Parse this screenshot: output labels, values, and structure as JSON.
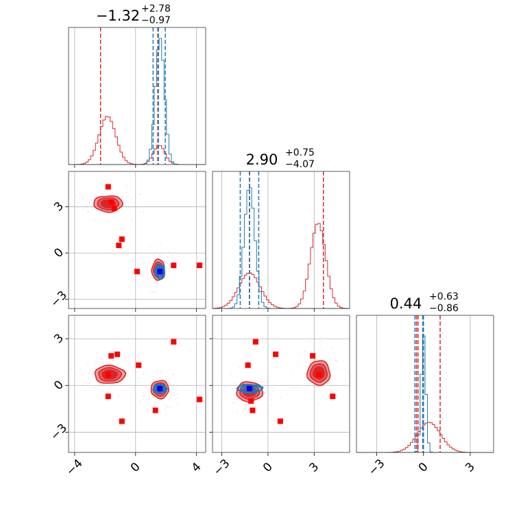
{
  "chart_data": {
    "type": "corner",
    "grid": true,
    "colors": {
      "red": "#d62728",
      "blue": "#1f77b4",
      "marker_red": "#ff0000",
      "marker_blue": "#0000ff",
      "fill_light": "#f29b9c",
      "fill_mid": "#e5585a"
    },
    "parameters": [
      {
        "title": {
          "value": "−1.32",
          "plus": "+2.78",
          "minus": "−0.97"
        },
        "range": [
          -4.4,
          4.6
        ],
        "ticks": [
          -4,
          0,
          4
        ],
        "tick_labels": [
          "−4",
          "0",
          "4"
        ],
        "quantiles_red": [
          -2.3,
          1.46,
          1.46
        ],
        "quantiles_blue": [
          1.15,
          1.5,
          1.95
        ]
      },
      {
        "title": {
          "value": "2.90",
          "plus": "+0.75",
          "minus": "−4.07"
        },
        "range": [
          -3.6,
          5.3
        ],
        "ticks": [
          -3,
          0,
          3
        ],
        "tick_labels": [
          "−3",
          "0",
          "3"
        ],
        "quantiles_red": [
          -1.2,
          -1.2,
          3.6
        ],
        "quantiles_blue": [
          -1.8,
          -1.2,
          -0.6
        ]
      },
      {
        "title": {
          "value": "0.44",
          "plus": "+0.63",
          "minus": "−0.86"
        },
        "range": [
          -4.3,
          4.5
        ],
        "ticks": [
          -3,
          0,
          3
        ],
        "tick_labels": [
          "−3",
          "0",
          "3"
        ],
        "quantiles_red": [
          -0.45,
          -0.35,
          1.07
        ],
        "quantiles_blue": [
          -0.55,
          -0.05,
          0.0
        ]
      }
    ],
    "histograms": [
      {
        "param": 0,
        "red": [
          {
            "mu": -1.85,
            "sigma": 0.55,
            "weight": 0.35
          },
          {
            "mu": 1.55,
            "sigma": 0.38,
            "weight": 0.14
          }
        ],
        "blue": [
          {
            "mu": 1.6,
            "sigma": 0.3,
            "weight": 1.0
          }
        ],
        "red_peak": 0.35,
        "blue_peak": 0.92
      },
      {
        "param": 1,
        "red": [
          {
            "mu": -1.2,
            "sigma": 0.7,
            "weight": 0.3
          },
          {
            "mu": 3.25,
            "sigma": 0.5,
            "weight": 0.72
          }
        ],
        "blue": [
          {
            "mu": -1.2,
            "sigma": 0.35,
            "weight": 1.0
          }
        ],
        "red_peak": 0.62,
        "blue_peak": 0.88
      },
      {
        "param": 2,
        "red": [
          {
            "mu": 0.35,
            "sigma": 0.75,
            "weight": 0.25
          }
        ],
        "blue": [
          {
            "mu": 0.0,
            "sigma": 0.15,
            "weight": 1.0
          }
        ],
        "red_peak": 0.22,
        "blue_peak": 0.85
      }
    ],
    "scatter_panels": [
      {
        "x_param": 0,
        "y_param": 1,
        "red_clusters": [
          {
            "cx": -1.8,
            "cy": 3.2,
            "rx": 1.8,
            "ry": 1.0
          },
          {
            "cx": 1.5,
            "cy": -1.1,
            "rx": 0.8,
            "ry": 1.3
          }
        ],
        "blue_clusters": [
          {
            "cx": 1.6,
            "cy": -1.2,
            "rx": 0.55,
            "ry": 0.95
          }
        ],
        "red_points": [
          [
            -1.8,
            4.3
          ],
          [
            -1.6,
            3.3
          ],
          [
            -1.4,
            2.9
          ],
          [
            -0.9,
            0.9
          ],
          [
            -1.1,
            0.5
          ],
          [
            0.1,
            -1.2
          ],
          [
            2.5,
            -0.8
          ],
          [
            4.2,
            -0.8
          ]
        ],
        "blue_points": [
          [
            1.6,
            -1.2
          ]
        ]
      },
      {
        "x_param": 0,
        "y_param": 2,
        "red_clusters": [
          {
            "cx": -1.7,
            "cy": 0.7,
            "rx": 1.9,
            "ry": 1.1
          },
          {
            "cx": 1.6,
            "cy": -0.25,
            "rx": 1.1,
            "ry": 1.1
          }
        ],
        "blue_clusters": [
          {
            "cx": 1.6,
            "cy": -0.2,
            "rx": 0.8,
            "ry": 0.55
          }
        ],
        "red_points": [
          [
            -1.6,
            1.9
          ],
          [
            -1.2,
            2.0
          ],
          [
            0.2,
            1.3
          ],
          [
            2.5,
            2.8
          ],
          [
            -1.8,
            0.7
          ],
          [
            -1.8,
            -0.7
          ],
          [
            1.3,
            -1.6
          ],
          [
            -0.9,
            -2.3
          ],
          [
            4.2,
            -0.9
          ]
        ],
        "blue_points": [
          [
            1.6,
            -0.2
          ]
        ]
      },
      {
        "x_param": 1,
        "y_param": 2,
        "red_clusters": [
          {
            "cx": -1.2,
            "cy": -0.4,
            "rx": 1.6,
            "ry": 1.2
          },
          {
            "cx": 3.3,
            "cy": 0.8,
            "rx": 1.4,
            "ry": 1.5
          }
        ],
        "blue_clusters": [
          {
            "cx": -1.2,
            "cy": -0.2,
            "rx": 1.6,
            "ry": 0.5
          }
        ],
        "red_points": [
          [
            -1.2,
            -0.2
          ],
          [
            -0.8,
            2.8
          ],
          [
            -1.3,
            1.3
          ],
          [
            0.5,
            2.0
          ],
          [
            -1.1,
            -1.0
          ],
          [
            -1.0,
            -1.6
          ],
          [
            0.8,
            -2.3
          ],
          [
            2.9,
            1.9
          ],
          [
            3.3,
            0.7
          ],
          [
            4.2,
            -0.7
          ]
        ],
        "blue_points": [
          [
            -1.2,
            -0.2
          ]
        ]
      }
    ]
  }
}
